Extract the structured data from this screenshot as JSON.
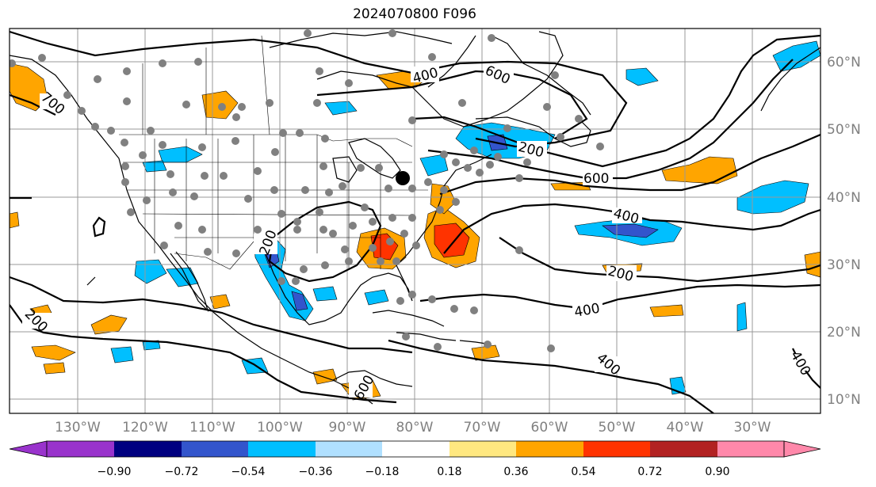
{
  "title": "2024070800 F096",
  "lon_labels": [
    "130°W",
    "120°W",
    "110°W",
    "100°W",
    "90°W",
    "80°W",
    "70°W",
    "60°W",
    "50°W",
    "40°W",
    "30°W"
  ],
  "lat_labels": [
    "60°N",
    "50°N",
    "40°N",
    "30°N",
    "20°N",
    "10°N"
  ],
  "colorbar": {
    "ticks": [
      "−0.90",
      "−0.72",
      "−0.54",
      "−0.36",
      "−0.18",
      "0.18",
      "0.36",
      "0.54",
      "0.72",
      "0.90"
    ],
    "colors": [
      "#9933cc",
      "#000080",
      "#3355cc",
      "#00bfff",
      "#b0e0ff",
      "#ffffff",
      "#ffe880",
      "#ffa500",
      "#ff3300",
      "#b22222",
      "#ff88aa"
    ]
  },
  "contour_labels": [
    "400",
    "600",
    "200",
    "600",
    "400",
    "200",
    "400",
    "400",
    "200",
    "200",
    "600",
    "400",
    "700"
  ],
  "colors": {
    "positive_moderate": "#ffa500",
    "positive_strong": "#ff3300",
    "negative_moderate": "#00bfff",
    "negative_strong": "#3355cc",
    "station": "#808080",
    "grid": "#999999",
    "axis_text": "#808080"
  }
}
